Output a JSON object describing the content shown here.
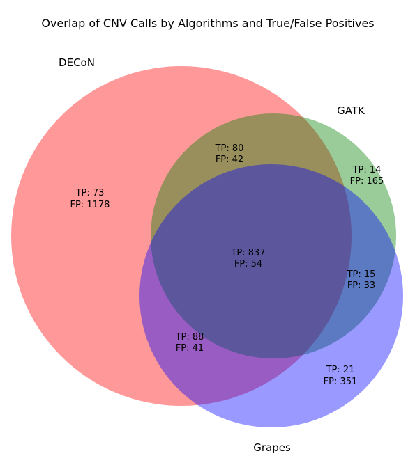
{
  "title": "Overlap of CNV Calls by Algorithms and True/False Positives",
  "sets": [
    {
      "name": "DECoN",
      "color": "#ff9999"
    },
    {
      "name": "GATK",
      "color": "#99cc99"
    },
    {
      "name": "Grapes",
      "color": "#9999ff"
    }
  ],
  "regions": {
    "decon_only": {
      "tp": "TP: 73",
      "fp": "FP: 1178"
    },
    "decon_gatk": {
      "tp": "TP: 80",
      "fp": "FP: 42"
    },
    "gatk_only": {
      "tp": "TP: 14",
      "fp": "FP: 165"
    },
    "all_three": {
      "tp": "TP: 837",
      "fp": "FP: 54"
    },
    "gatk_grapes": {
      "tp": "TP: 15",
      "fp": "FP: 33"
    },
    "decon_grapes": {
      "tp": "TP: 88",
      "fp": "FP: 41"
    },
    "grapes_only": {
      "tp": "TP: 21",
      "fp": "FP: 351"
    }
  }
}
